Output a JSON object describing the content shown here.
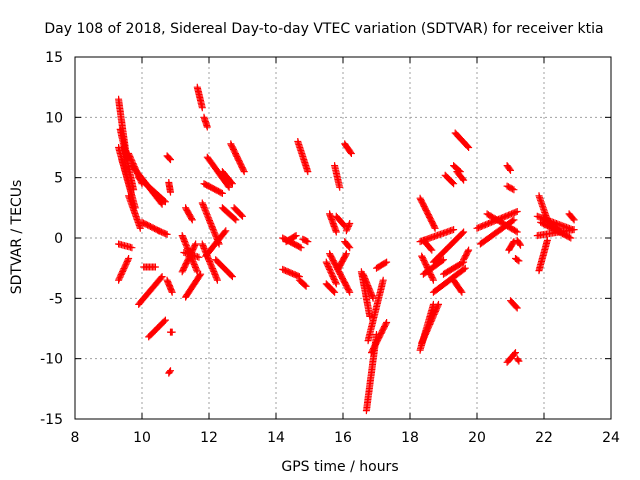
{
  "chart_data": {
    "type": "scatter",
    "title": "Day 108 of 2018, Sidereal Day-to-day VTEC variation (SDTVAR) for receiver ktia",
    "xlabel": "GPS time / hours",
    "ylabel": "SDTVAR / TECUs",
    "xlim": [
      8,
      24
    ],
    "ylim": [
      -15,
      15
    ],
    "xticks": [
      "8",
      "10",
      "12",
      "14",
      "16",
      "18",
      "20",
      "22",
      "24"
    ],
    "yticks": [
      "15",
      "10",
      "5",
      "0",
      "-5",
      "-10",
      "-15"
    ],
    "grid": true,
    "marker": "+",
    "color": "#ff0000",
    "segments": [
      {
        "x": [
          9.3,
          9.55
        ],
        "y": [
          11.5,
          6.5
        ]
      },
      {
        "x": [
          9.35,
          9.75
        ],
        "y": [
          9.0,
          4.0
        ]
      },
      {
        "x": [
          9.3,
          9.7
        ],
        "y": [
          7.5,
          3.5
        ]
      },
      {
        "x": [
          9.4,
          9.8
        ],
        "y": [
          6.5,
          2.5
        ]
      },
      {
        "x": [
          9.6,
          10.0
        ],
        "y": [
          7.0,
          4.5
        ]
      },
      {
        "x": [
          9.7,
          10.6
        ],
        "y": [
          6.0,
          2.8
        ]
      },
      {
        "x": [
          9.9,
          10.7
        ],
        "y": [
          5.0,
          3.0
        ]
      },
      {
        "x": [
          9.6,
          9.95
        ],
        "y": [
          3.5,
          0.8
        ]
      },
      {
        "x": [
          9.3,
          9.7
        ],
        "y": [
          -0.5,
          -0.8
        ]
      },
      {
        "x": [
          9.3,
          9.6
        ],
        "y": [
          -3.5,
          -1.7
        ]
      },
      {
        "x": [
          9.9,
          10.6
        ],
        "y": [
          -5.5,
          -3.2
        ]
      },
      {
        "x": [
          10.05,
          10.4
        ],
        "y": [
          -2.4,
          -2.4
        ]
      },
      {
        "x": [
          10.0,
          10.5
        ],
        "y": [
          1.3,
          0.6
        ]
      },
      {
        "x": [
          10.5,
          10.75
        ],
        "y": [
          0.6,
          0.3
        ]
      },
      {
        "x": [
          10.2,
          10.7
        ],
        "y": [
          -8.2,
          -6.8
        ]
      },
      {
        "x": [
          10.75,
          10.9
        ],
        "y": [
          -3.5,
          -4.5
        ]
      },
      {
        "x": [
          10.75,
          10.85
        ],
        "y": [
          6.8,
          6.5
        ]
      },
      {
        "x": [
          10.8,
          10.85
        ],
        "y": [
          -11.2,
          -11.0
        ]
      },
      {
        "x": [
          10.85,
          10.9
        ],
        "y": [
          -7.8,
          -7.8
        ]
      },
      {
        "x": [
          10.85,
          10.8
        ],
        "y": [
          3.8,
          4.6
        ]
      },
      {
        "x": [
          11.2,
          11.65
        ],
        "y": [
          0.2,
          -2.8
        ]
      },
      {
        "x": [
          11.2,
          11.6
        ],
        "y": [
          -2.8,
          -0.5
        ]
      },
      {
        "x": [
          11.25,
          11.7
        ],
        "y": [
          -1.2,
          -1.6
        ]
      },
      {
        "x": [
          11.3,
          11.5
        ],
        "y": [
          2.5,
          1.5
        ]
      },
      {
        "x": [
          11.3,
          11.75
        ],
        "y": [
          -4.9,
          -3.0
        ]
      },
      {
        "x": [
          11.65,
          11.8
        ],
        "y": [
          12.5,
          10.8
        ]
      },
      {
        "x": [
          11.85,
          11.95
        ],
        "y": [
          10.0,
          9.2
        ]
      },
      {
        "x": [
          11.95,
          12.6
        ],
        "y": [
          6.7,
          4.2
        ]
      },
      {
        "x": [
          11.85,
          12.4
        ],
        "y": [
          4.5,
          3.7
        ]
      },
      {
        "x": [
          11.8,
          12.3
        ],
        "y": [
          2.9,
          -0.5
        ]
      },
      {
        "x": [
          11.9,
          12.5
        ],
        "y": [
          -1.5,
          0.6
        ]
      },
      {
        "x": [
          11.8,
          12.25
        ],
        "y": [
          -0.5,
          -3.5
        ]
      },
      {
        "x": [
          12.2,
          12.7
        ],
        "y": [
          -1.8,
          -3.2
        ]
      },
      {
        "x": [
          12.4,
          12.7
        ],
        "y": [
          5.5,
          4.5
        ]
      },
      {
        "x": [
          12.4,
          12.8
        ],
        "y": [
          2.5,
          1.5
        ]
      },
      {
        "x": [
          12.65,
          13.05
        ],
        "y": [
          7.8,
          5.5
        ]
      },
      {
        "x": [
          12.75,
          13.0
        ],
        "y": [
          2.5,
          1.8
        ]
      },
      {
        "x": [
          14.2,
          14.75
        ],
        "y": [
          0.0,
          -0.8
        ]
      },
      {
        "x": [
          14.3,
          14.6
        ],
        "y": [
          -0.3,
          0.2
        ]
      },
      {
        "x": [
          14.2,
          14.7
        ],
        "y": [
          -2.6,
          -3.2
        ]
      },
      {
        "x": [
          14.65,
          14.95
        ],
        "y": [
          8.0,
          5.5
        ]
      },
      {
        "x": [
          14.7,
          14.9
        ],
        "y": [
          -3.5,
          -4.0
        ]
      },
      {
        "x": [
          14.8,
          14.95
        ],
        "y": [
          -0.1,
          -0.3
        ]
      },
      {
        "x": [
          15.5,
          15.8
        ],
        "y": [
          -2.0,
          -3.8
        ]
      },
      {
        "x": [
          15.5,
          15.75
        ],
        "y": [
          -3.8,
          -4.5
        ]
      },
      {
        "x": [
          15.6,
          16.2
        ],
        "y": [
          -1.3,
          -4.5
        ]
      },
      {
        "x": [
          15.6,
          15.8
        ],
        "y": [
          2.0,
          0.5
        ]
      },
      {
        "x": [
          15.75,
          15.9
        ],
        "y": [
          6.0,
          4.2
        ]
      },
      {
        "x": [
          15.8,
          16.05
        ],
        "y": [
          1.8,
          1.0
        ]
      },
      {
        "x": [
          15.85,
          16.1
        ],
        "y": [
          -2.6,
          -1.3
        ]
      },
      {
        "x": [
          16.05,
          16.25
        ],
        "y": [
          7.8,
          7.0
        ]
      },
      {
        "x": [
          16.05,
          16.2
        ],
        "y": [
          -0.3,
          -0.8
        ]
      },
      {
        "x": [
          16.1,
          16.2
        ],
        "y": [
          0.6,
          1.2
        ]
      },
      {
        "x": [
          16.55,
          16.8
        ],
        "y": [
          -2.8,
          -6.5
        ]
      },
      {
        "x": [
          16.6,
          16.9
        ],
        "y": [
          -3.0,
          -5.0
        ]
      },
      {
        "x": [
          16.7,
          17.0
        ],
        "y": [
          -14.3,
          -8.0
        ]
      },
      {
        "x": [
          16.75,
          17.2
        ],
        "y": [
          -8.5,
          -3.5
        ]
      },
      {
        "x": [
          16.85,
          17.3
        ],
        "y": [
          -9.5,
          -7.0
        ]
      },
      {
        "x": [
          17.0,
          17.3
        ],
        "y": [
          -2.5,
          -2.0
        ]
      },
      {
        "x": [
          18.3,
          18.75
        ],
        "y": [
          3.3,
          0.8
        ]
      },
      {
        "x": [
          18.3,
          19.3
        ],
        "y": [
          -0.3,
          0.7
        ]
      },
      {
        "x": [
          18.4,
          18.65
        ],
        "y": [
          -0.2,
          -1.0
        ]
      },
      {
        "x": [
          18.35,
          18.7
        ],
        "y": [
          -1.5,
          -3.5
        ]
      },
      {
        "x": [
          18.4,
          19.0
        ],
        "y": [
          -3.0,
          -1.8
        ]
      },
      {
        "x": [
          18.3,
          18.7
        ],
        "y": [
          -9.3,
          -5.5
        ]
      },
      {
        "x": [
          18.35,
          18.85
        ],
        "y": [
          -8.7,
          -5.5
        ]
      },
      {
        "x": [
          18.7,
          19.65
        ],
        "y": [
          -4.5,
          -2.5
        ]
      },
      {
        "x": [
          18.7,
          19.6
        ],
        "y": [
          -2.0,
          0.5
        ]
      },
      {
        "x": [
          19.0,
          19.6
        ],
        "y": [
          -3.0,
          -2.0
        ]
      },
      {
        "x": [
          19.05,
          19.3
        ],
        "y": [
          5.2,
          4.5
        ]
      },
      {
        "x": [
          19.3,
          19.55
        ],
        "y": [
          -3.5,
          -4.5
        ]
      },
      {
        "x": [
          19.3,
          19.5
        ],
        "y": [
          6.0,
          5.5
        ]
      },
      {
        "x": [
          19.4,
          19.6
        ],
        "y": [
          5.5,
          4.8
        ]
      },
      {
        "x": [
          19.35,
          19.75
        ],
        "y": [
          8.7,
          7.5
        ]
      },
      {
        "x": [
          19.6,
          19.75
        ],
        "y": [
          -1.8,
          -1.0
        ]
      },
      {
        "x": [
          20.0,
          21.2
        ],
        "y": [
          0.8,
          2.2
        ]
      },
      {
        "x": [
          20.1,
          21.1
        ],
        "y": [
          -0.5,
          1.5
        ]
      },
      {
        "x": [
          20.3,
          21.2
        ],
        "y": [
          2.0,
          0.5
        ]
      },
      {
        "x": [
          20.9,
          21.0
        ],
        "y": [
          6.0,
          5.6
        ]
      },
      {
        "x": [
          20.9,
          21.1
        ],
        "y": [
          4.3,
          4.0
        ]
      },
      {
        "x": [
          20.95,
          21.1
        ],
        "y": [
          -1.0,
          -0.3
        ]
      },
      {
        "x": [
          21.0,
          21.2
        ],
        "y": [
          -5.2,
          -5.8
        ]
      },
      {
        "x": [
          21.2,
          21.3
        ],
        "y": [
          -0.2,
          -0.6
        ]
      },
      {
        "x": [
          20.9,
          21.15
        ],
        "y": [
          -10.3,
          -9.5
        ]
      },
      {
        "x": [
          21.2,
          21.25
        ],
        "y": [
          -10.0,
          -10.2
        ]
      },
      {
        "x": [
          21.15,
          21.25
        ],
        "y": [
          -1.7,
          -1.9
        ]
      },
      {
        "x": [
          21.8,
          22.85
        ],
        "y": [
          1.8,
          0.7
        ]
      },
      {
        "x": [
          21.8,
          22.9
        ],
        "y": [
          0.2,
          0.7
        ]
      },
      {
        "x": [
          21.9,
          22.8
        ],
        "y": [
          1.3,
          0.0
        ]
      },
      {
        "x": [
          21.85,
          22.1
        ],
        "y": [
          -2.7,
          -0.2
        ]
      },
      {
        "x": [
          21.85,
          22.1
        ],
        "y": [
          3.5,
          1.5
        ]
      },
      {
        "x": [
          22.0,
          22.5
        ],
        "y": [
          1.7,
          0.5
        ]
      },
      {
        "x": [
          22.75,
          22.9
        ],
        "y": [
          2.0,
          1.5
        ]
      }
    ]
  }
}
